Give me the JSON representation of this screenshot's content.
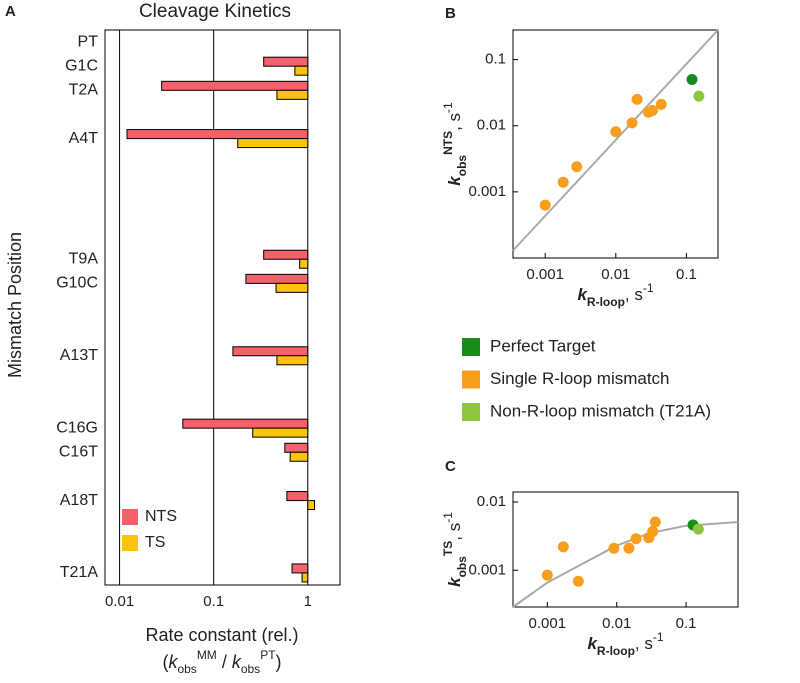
{
  "chart_data": [
    {
      "type": "bar",
      "panel": "A",
      "orientation": "horizontal",
      "title": "Cleavage Kinetics",
      "y_label": "Mismatch Position",
      "x_label": "Rate constant (rel.)",
      "x_formula": {
        "open": "(",
        "symbol": "k",
        "subscript": "obs",
        "superscript": "MM",
        "divider": " / ",
        "symbol2": "k",
        "subscript2": "obs",
        "superscript2": "PT",
        "close": ")"
      },
      "categories": [
        "PT",
        "G1C",
        "T2A",
        null,
        "A4T",
        null,
        null,
        null,
        null,
        "T9A",
        "G10C",
        null,
        null,
        "A13T",
        null,
        null,
        "C16G",
        "C16T",
        null,
        "A18T",
        null,
        null,
        "T21A"
      ],
      "series": [
        {
          "name": "NTS",
          "color": "#f5606a",
          "values": [
            1,
            0.34,
            0.028,
            null,
            0.012,
            null,
            null,
            null,
            null,
            0.34,
            0.22,
            null,
            null,
            0.16,
            null,
            null,
            0.047,
            0.57,
            null,
            0.6,
            null,
            null,
            0.68
          ]
        },
        {
          "name": "TS",
          "color": "#fcc30d",
          "values": [
            null,
            0.73,
            0.47,
            null,
            0.18,
            null,
            null,
            null,
            null,
            0.82,
            0.46,
            null,
            null,
            0.47,
            null,
            null,
            0.26,
            0.65,
            null,
            1.18,
            null,
            null,
            0.87
          ]
        }
      ],
      "xscale": "log",
      "xlim": [
        0.007,
        2.2
      ],
      "xticks": [
        0.01,
        0.1,
        1
      ],
      "grid": true,
      "legend": "lower left"
    },
    {
      "type": "scatter",
      "panel": "B",
      "xscale": "log",
      "yscale": "log",
      "xlim": [
        0.00035,
        0.28
      ],
      "ylim": [
        0.0001,
        0.28
      ],
      "xticks": [
        0.001,
        0.01,
        0.1
      ],
      "yticks": [
        0.001,
        0.01,
        0.1
      ],
      "x_label": {
        "symbol": "k",
        "subscript": "R-loop",
        "unit": ", s",
        "unit_exponent": "-1"
      },
      "y_label": {
        "symbol": "k",
        "subscript": "obs",
        "superscript": "NTS",
        "unit": ", s",
        "unit_exponent": "-1"
      },
      "series": [
        {
          "name": "Perfect Target",
          "color": "#1a8c1a",
          "x": [
            0.12
          ],
          "values": [
            0.05
          ]
        },
        {
          "name": "Single R-loop mismatch",
          "color": "#f99d1c",
          "x": [
            0.001,
            0.0018,
            0.0028,
            0.01,
            0.017,
            0.02,
            0.029,
            0.033,
            0.044
          ],
          "values": [
            0.00063,
            0.0014,
            0.0024,
            0.0081,
            0.011,
            0.025,
            0.016,
            0.017,
            0.021
          ]
        },
        {
          "name": "Non-R-loop mismatch (T21A)",
          "color": "#8dc63f",
          "x": [
            0.15
          ],
          "values": [
            0.028
          ]
        }
      ],
      "fit": {
        "color": "#aaaaaa",
        "x": [
          0.00035,
          0.28
        ],
        "values": [
          0.00013,
          0.28
        ]
      },
      "legend": "below"
    },
    {
      "type": "scatter",
      "panel": "C",
      "xscale": "log",
      "yscale": "log",
      "xlim": [
        0.00032,
        0.56
      ],
      "ylim": [
        0.00029,
        0.014
      ],
      "xticks": [
        0.001,
        0.01,
        0.1
      ],
      "yticks": [
        0.001,
        0.01
      ],
      "x_label": {
        "symbol": "k",
        "subscript": "R-loop",
        "unit": ", s",
        "unit_exponent": "-1"
      },
      "y_label": {
        "symbol": "k",
        "subscript": "obs",
        "superscript": "TS",
        "unit": ", s",
        "unit_exponent": "-1"
      },
      "series": [
        {
          "color": "#1a8c1a",
          "x": [
            0.126
          ],
          "values": [
            0.0046
          ]
        },
        {
          "color": "#f99d1c",
          "x": [
            0.001,
            0.0017,
            0.0028,
            0.0091,
            0.015,
            0.019,
            0.029,
            0.033,
            0.036
          ],
          "values": [
            0.00085,
            0.0022,
            0.00069,
            0.0021,
            0.0021,
            0.0029,
            0.003,
            0.0037,
            0.0051
          ]
        },
        {
          "color": "#8dc63f",
          "x": [
            0.15
          ],
          "values": [
            0.004
          ]
        }
      ],
      "fit": {
        "color": "#aaaaaa",
        "x": [
          0.00032,
          0.001,
          0.003,
          0.01,
          0.03,
          0.1,
          0.56
        ],
        "values": [
          0.00029,
          0.00066,
          0.0012,
          0.0023,
          0.0035,
          0.0045,
          0.0051
        ]
      }
    }
  ]
}
